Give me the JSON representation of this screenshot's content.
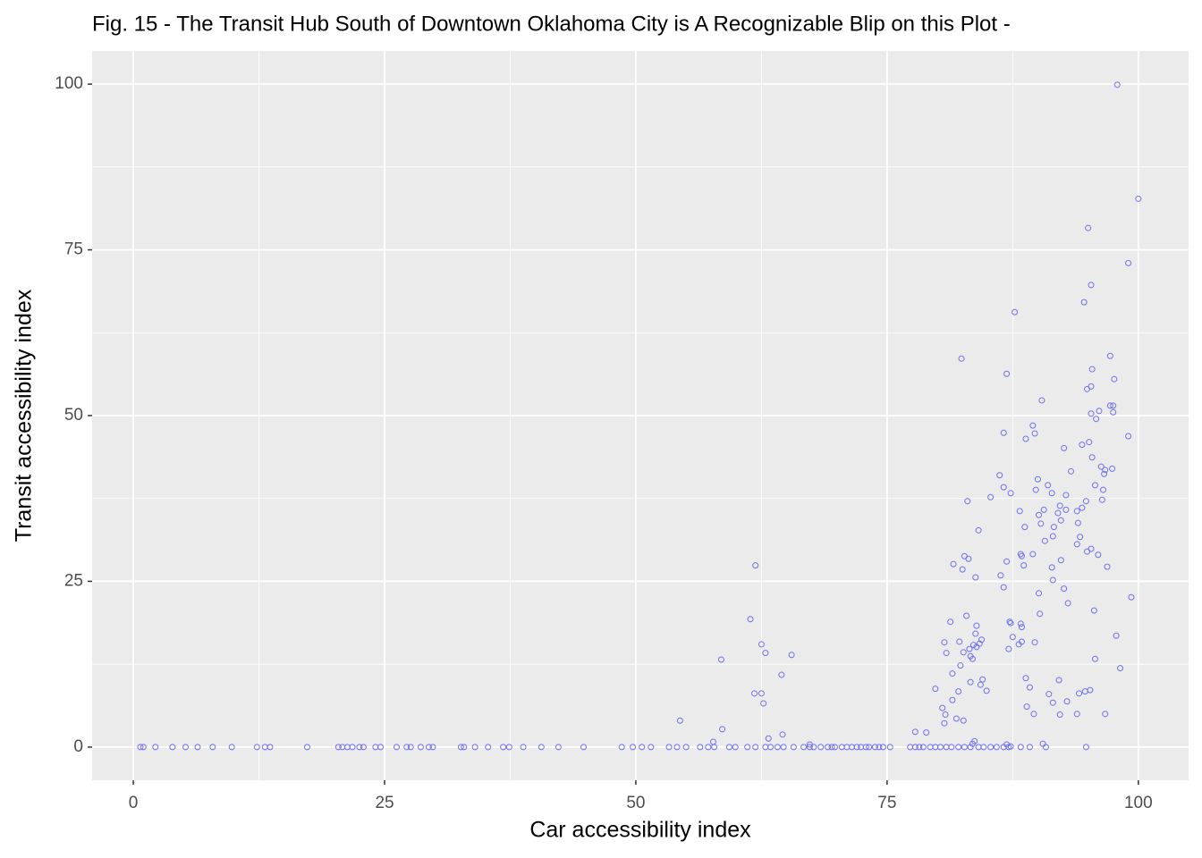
{
  "chart_data": {
    "type": "scatter",
    "title": "Fig. 15 - The Transit Hub South of Downtown Oklahoma City is A Recognizable Blip on this Plot -",
    "x_label": "Car accessibility index",
    "y_label": "Transit accessibility index",
    "xlim": [
      -4.1,
      105
    ],
    "ylim": [
      -5,
      105
    ],
    "xticks": [
      0,
      25,
      50,
      75,
      100
    ],
    "yticks": [
      0,
      25,
      50,
      75,
      100
    ],
    "grid": true,
    "color": "#6f6ff2",
    "x": [
      97.9,
      100,
      95,
      99,
      95.3,
      94.6,
      87.7,
      82.4,
      97.2,
      86.9,
      95.4,
      97.6,
      95.3,
      94.9,
      90.4,
      97.2,
      97.5,
      96.1,
      97.5,
      95.3,
      95.8,
      89.5,
      89.7,
      86.6,
      88.8,
      99,
      95.1,
      94.4,
      92.6,
      95.4,
      96.3,
      97.4,
      96.7,
      96.6,
      93.3,
      86.2,
      90,
      91,
      86.6,
      95.7,
      96.5,
      89.8,
      85.3,
      87.3,
      91.4,
      92.8,
      83,
      96.4,
      94.8,
      92.2,
      94.4,
      88.2,
      90.6,
      93.9,
      90.1,
      92,
      92.8,
      90.3,
      91.6,
      88.7,
      94,
      92.3,
      84.1,
      91.5,
      94.2,
      90.7,
      93.9,
      95.3,
      94.9,
      89.5,
      88.3,
      88.4,
      82.7,
      83.1,
      96,
      92.3,
      86.9,
      81.6,
      96.9,
      91.4,
      82.5,
      88.6,
      86.3,
      83.8,
      91.5,
      86.6,
      92.6,
      90.1,
      99.3,
      93,
      95.6,
      90.2,
      82.9,
      87.2,
      81.3,
      88.3,
      83.9,
      88.4,
      87.3,
      83.8,
      97.8,
      87.5,
      84.4,
      80.7,
      88.4,
      89.7,
      82.2,
      88.1,
      84.2,
      87.1,
      83.2,
      83.6,
      83.9,
      80.9,
      82.6,
      83.3,
      83.5,
      95.7,
      82.3,
      98.2,
      81.5,
      92.1,
      84.5,
      88.8,
      83.3,
      84.3,
      89.2,
      79.8,
      95.2,
      84.9,
      82.1,
      94.7,
      94.1,
      91.1,
      91.5,
      92.9,
      81.5,
      80.5,
      88.9,
      89.6,
      92.2,
      93.9,
      96.7,
      80.8,
      81.9,
      82.6,
      80.7,
      77.8,
      78.9,
      86.9,
      90.5,
      83.5,
      67.3,
      87.3,
      83.7,
      61.9,
      61.4,
      62.5,
      62.9,
      65.5,
      58.5,
      64.5,
      61.8,
      62.5,
      62.7,
      54.4,
      58.6,
      64.6,
      63.2,
      57.7,
      0.7,
      1.0,
      2.2,
      3.9,
      5.2,
      6.4,
      7.9,
      9.8,
      12.3,
      13.1,
      13.6,
      17.3,
      20.4,
      20.8,
      21.3,
      21.8,
      22.5,
      22.9,
      24.1,
      24.6,
      26.2,
      27.2,
      27.6,
      28.6,
      29.4,
      29.8,
      32.6,
      32.9,
      34,
      35.3,
      36.8,
      37.4,
      38.8,
      40.6,
      42.3,
      44.8,
      48.6,
      49.7,
      50.6,
      51.5,
      53.3,
      54.1,
      55,
      56.4,
      57.2,
      57.8,
      59.3,
      59.9,
      61.1,
      61.9,
      62.9,
      63.4,
      64.1,
      64.7,
      65.7,
      66.7,
      67.3,
      67.7,
      68.4,
      69.1,
      69.5,
      69.8,
      70.5,
      71,
      71.5,
      72,
      72.4,
      72.9,
      73.2,
      73.8,
      74.2,
      74.6,
      75.3,
      77.3,
      77.8,
      78.2,
      78.6,
      79.3,
      79.8,
      80.3,
      80.9,
      81.4,
      82.1,
      82.7,
      83.3,
      84.1,
      84.6,
      85.3,
      85.9,
      86.6,
      87.1,
      88.3,
      89.2,
      90.8,
      94.8
    ],
    "values": [
      99.9,
      82.7,
      78.3,
      73,
      69.7,
      67.1,
      65.6,
      58.6,
      59,
      56.3,
      57,
      55.5,
      54.4,
      54,
      52.3,
      51.5,
      51.5,
      50.7,
      50.5,
      50.3,
      49.5,
      48.5,
      47.3,
      47.4,
      46.5,
      46.9,
      46,
      45.6,
      45.1,
      43.7,
      42.3,
      42,
      41.8,
      41.2,
      41.6,
      41,
      40.4,
      39.5,
      39.2,
      39.5,
      38.8,
      38.8,
      37.7,
      38.3,
      38.3,
      38,
      37.1,
      37.3,
      37.1,
      36.4,
      36.1,
      35.6,
      35.8,
      35.6,
      35,
      35.3,
      35.8,
      33.7,
      33.2,
      33.2,
      33.8,
      34.2,
      32.7,
      31.8,
      31.7,
      31.1,
      30.6,
      29.9,
      29.5,
      29.1,
      29.1,
      28.8,
      28.8,
      28.4,
      29,
      28.2,
      28,
      27.6,
      27.2,
      27.1,
      26.8,
      27.4,
      25.9,
      25.6,
      25.2,
      24.1,
      23.9,
      23.2,
      22.6,
      21.7,
      20.6,
      20.1,
      19.8,
      18.9,
      18.9,
      18.6,
      18.3,
      18.1,
      18.7,
      17.1,
      16.8,
      16.6,
      16.2,
      15.8,
      15.9,
      15.8,
      15.9,
      15.5,
      15.6,
      14.8,
      14.8,
      15.4,
      15.1,
      14.2,
      14.3,
      13.7,
      13.3,
      13.3,
      12.3,
      11.9,
      11.1,
      10.1,
      10.2,
      10.4,
      9.8,
      9.4,
      9,
      8.8,
      8.6,
      8.5,
      8.4,
      8.4,
      8.1,
      8,
      6.7,
      6.9,
      7.1,
      5.9,
      6.1,
      5,
      4.9,
      5,
      5,
      4.9,
      4.3,
      4,
      3.6,
      2.3,
      2.2,
      0.4,
      0.5,
      0.5,
      0.4,
      0.1,
      0.9,
      27.4,
      19.3,
      15.5,
      14.2,
      13.9,
      13.2,
      10.9,
      8.1,
      8.1,
      6.6,
      4,
      2.7,
      1.9,
      1.3,
      0.8,
      0,
      0,
      0,
      0,
      0,
      0,
      0,
      0,
      0,
      0,
      0,
      0,
      0,
      0,
      0,
      0,
      0,
      0,
      0,
      0,
      0,
      0,
      0,
      0,
      0,
      0,
      0,
      0,
      0,
      0,
      0,
      0,
      0,
      0,
      0,
      0,
      0,
      0,
      0,
      0,
      0,
      0,
      0,
      0,
      0,
      0,
      0,
      0,
      0,
      0,
      0,
      0,
      0,
      0,
      0,
      0,
      0,
      0,
      0,
      0,
      0,
      0,
      0,
      0,
      0,
      0,
      0,
      0,
      0,
      0,
      0,
      0,
      0,
      0,
      0,
      0,
      0,
      0,
      0,
      0,
      0,
      0,
      0,
      0,
      0,
      0,
      0,
      0,
      0,
      0,
      0,
      0,
      0,
      0,
      0
    ]
  }
}
